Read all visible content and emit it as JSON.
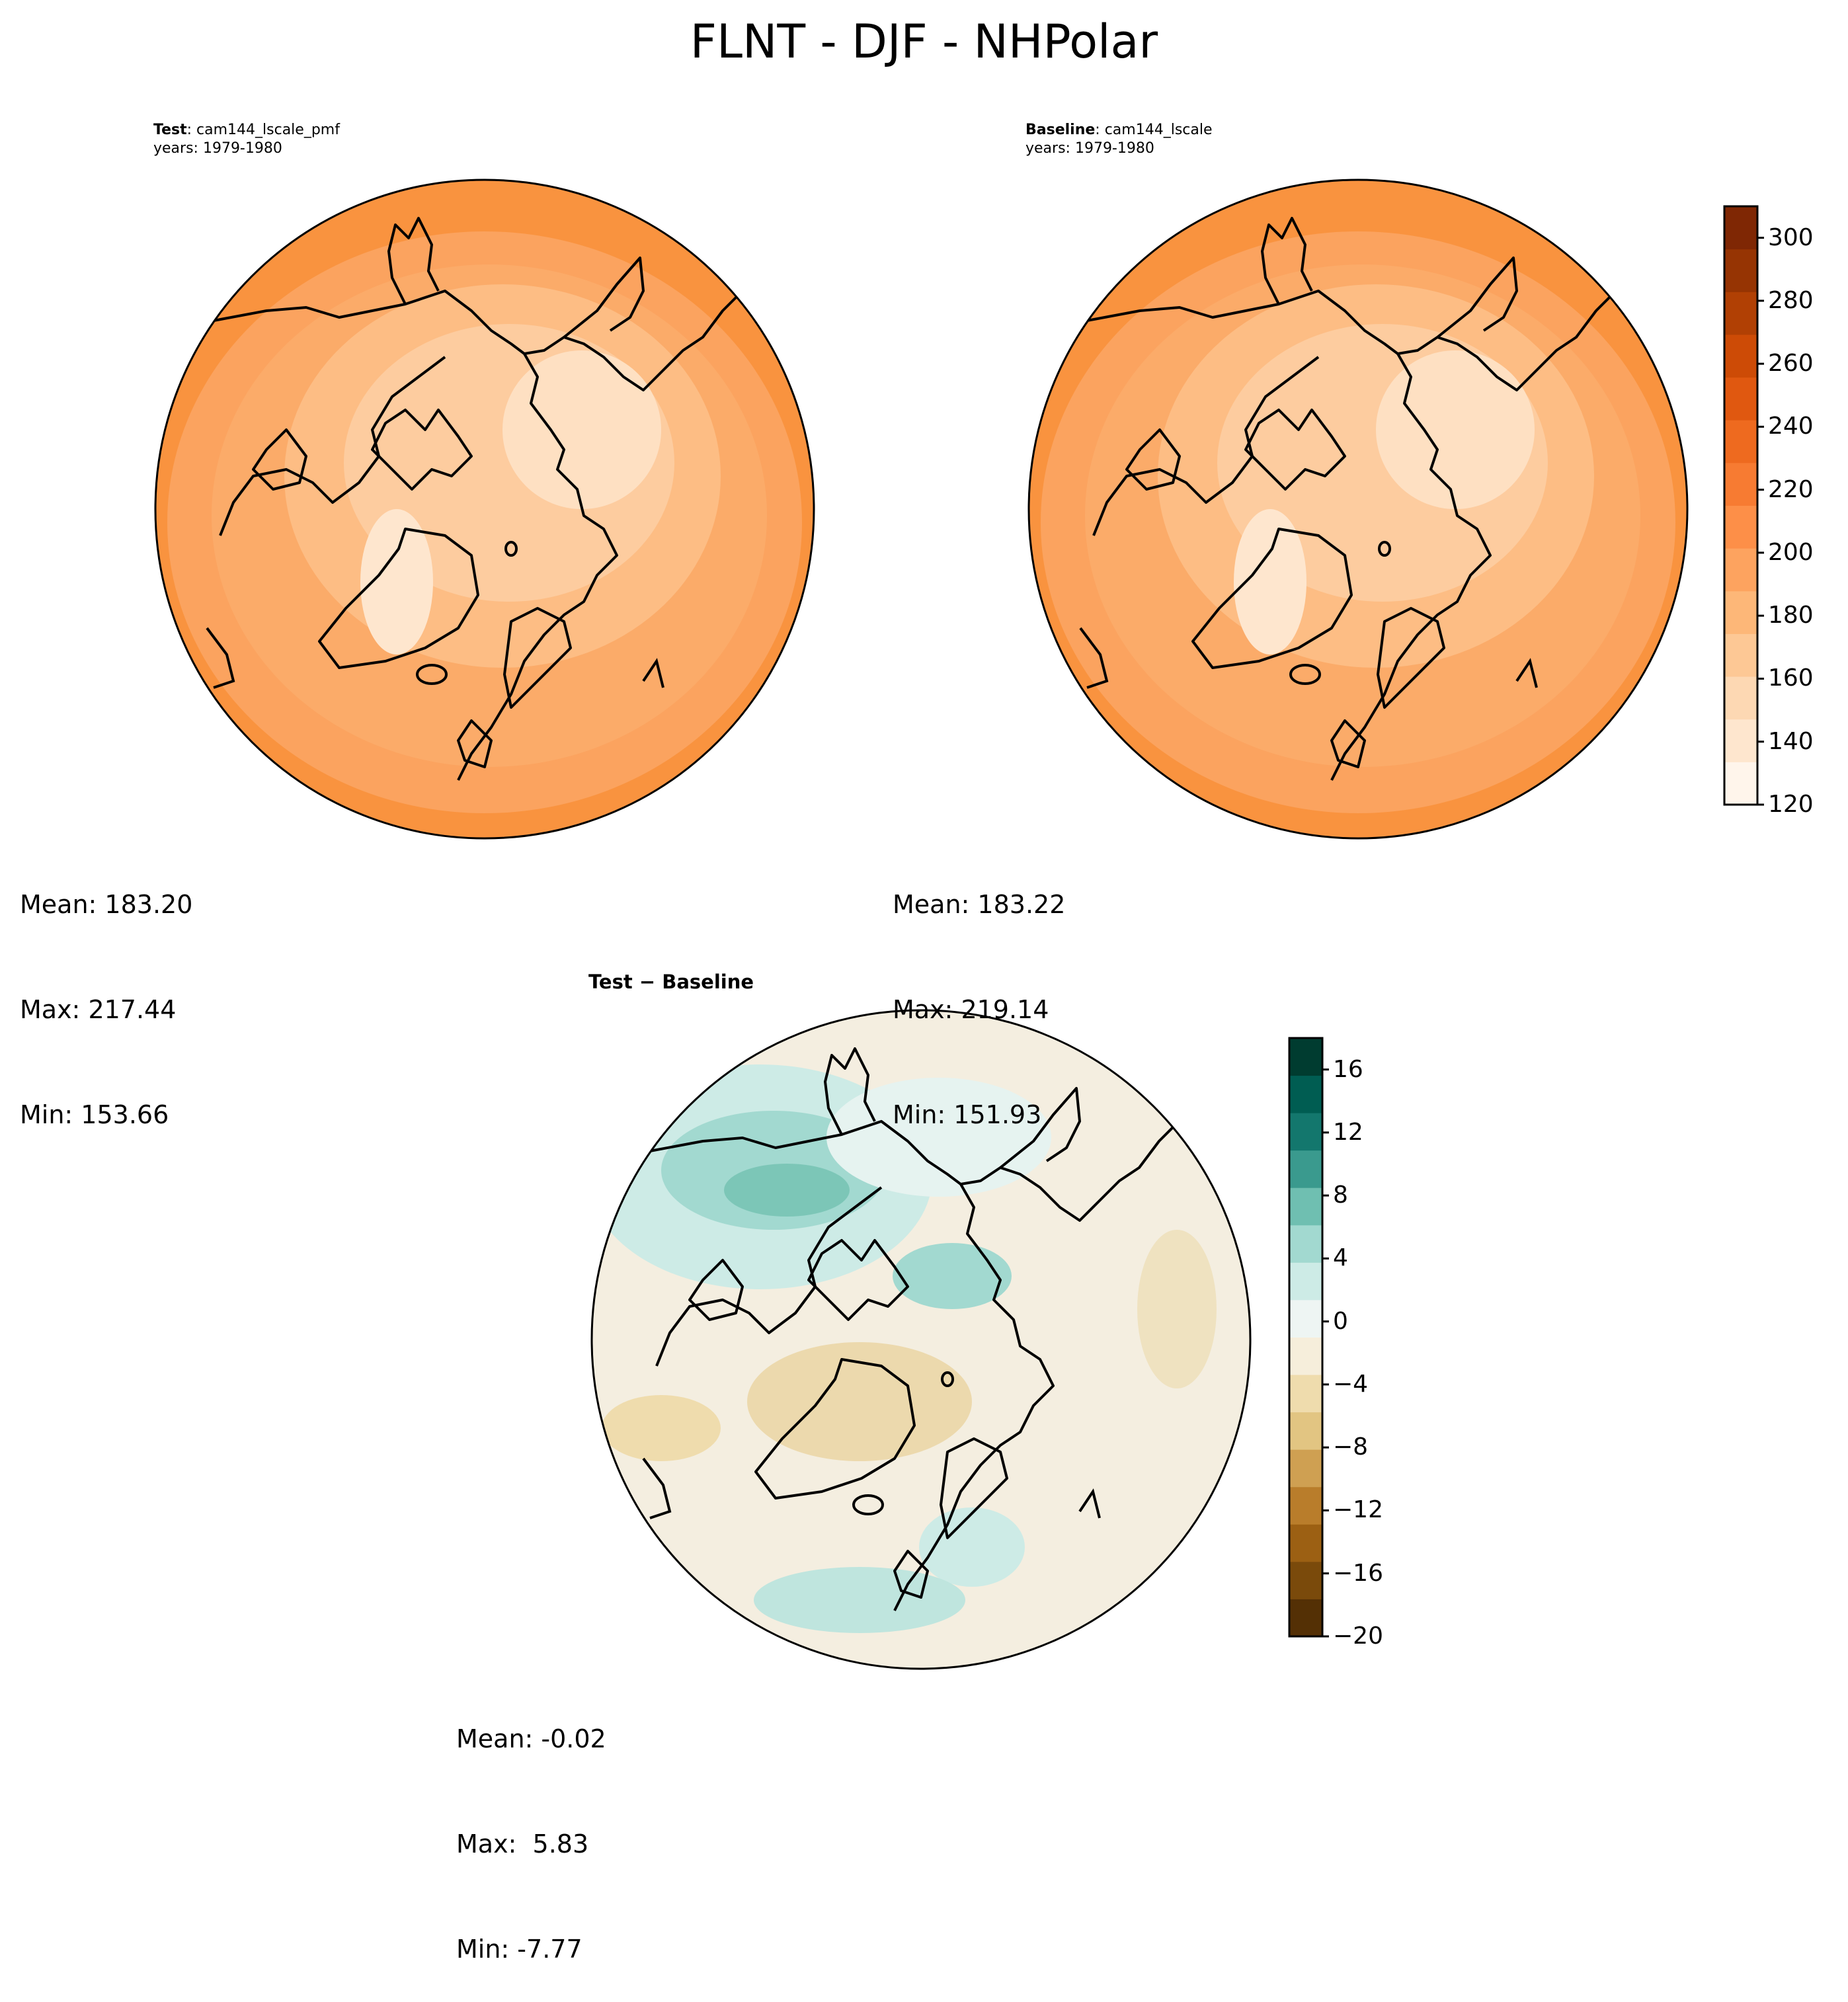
{
  "figure": {
    "title": "FLNT - DJF - NHPolar"
  },
  "panels": {
    "test": {
      "label_bold": "Test",
      "label_rest": ": cam144_lscale_pmf",
      "years": "years: 1979-1980",
      "stats": {
        "mean": "Mean: 183.20",
        "max": "Max: 217.44",
        "min": "Min: 153.66"
      }
    },
    "baseline": {
      "label_bold": "Baseline",
      "label_rest": ": cam144_lscale",
      "years": "years: 1979-1980",
      "stats": {
        "mean": "Mean: 183.22",
        "max": "Max: 219.14",
        "min": "Min: 151.93"
      }
    },
    "diff": {
      "label": "Test − Baseline",
      "stats": {
        "mean": "Mean: -0.02",
        "max": "Max:  5.83",
        "min": "Min: -7.77"
      }
    }
  },
  "colorbars": {
    "main": {
      "ticks": [
        "120",
        "140",
        "160",
        "180",
        "200",
        "220",
        "240",
        "260",
        "280",
        "300"
      ],
      "range": [
        120,
        310
      ],
      "colors": [
        "#fff5eb",
        "#fee6ce",
        "#fdd8b3",
        "#fdc895",
        "#fdb778",
        "#fda35f",
        "#fd8f48",
        "#f77b32",
        "#ee6a1f",
        "#e05810",
        "#cd4b06",
        "#b14004",
        "#963403",
        "#7f2704"
      ]
    },
    "diff": {
      "ticks": [
        "−20",
        "−16",
        "−12",
        "−8",
        "−4",
        "0",
        "4",
        "8",
        "12",
        "16"
      ],
      "range": [
        -20,
        18
      ],
      "colors": [
        "#543005",
        "#7a4a0b",
        "#9c6013",
        "#b97d2b",
        "#cfa052",
        "#e2c582",
        "#efdcad",
        "#f6eedb",
        "#eef5f3",
        "#cdebe6",
        "#a2d9d0",
        "#6fbfb1",
        "#3a9a8e",
        "#13776d",
        "#005d52",
        "#003c30"
      ]
    }
  },
  "map_fields": {
    "test": {
      "outer_color": "#f9933f",
      "mid_color": "#fbab69",
      "inner_color": "#fdcc9f",
      "center_color": "#fee0c2"
    },
    "baseline": {
      "outer_color": "#f9933f",
      "mid_color": "#fbab69",
      "inner_color": "#fdcc9f",
      "center_color": "#fee0c2"
    },
    "diff": {
      "background": "#f4eee0",
      "positive_color": "#bfe5de",
      "strong_positive_color": "#7cc6b7",
      "negative_color": "#ecd9ad"
    }
  }
}
